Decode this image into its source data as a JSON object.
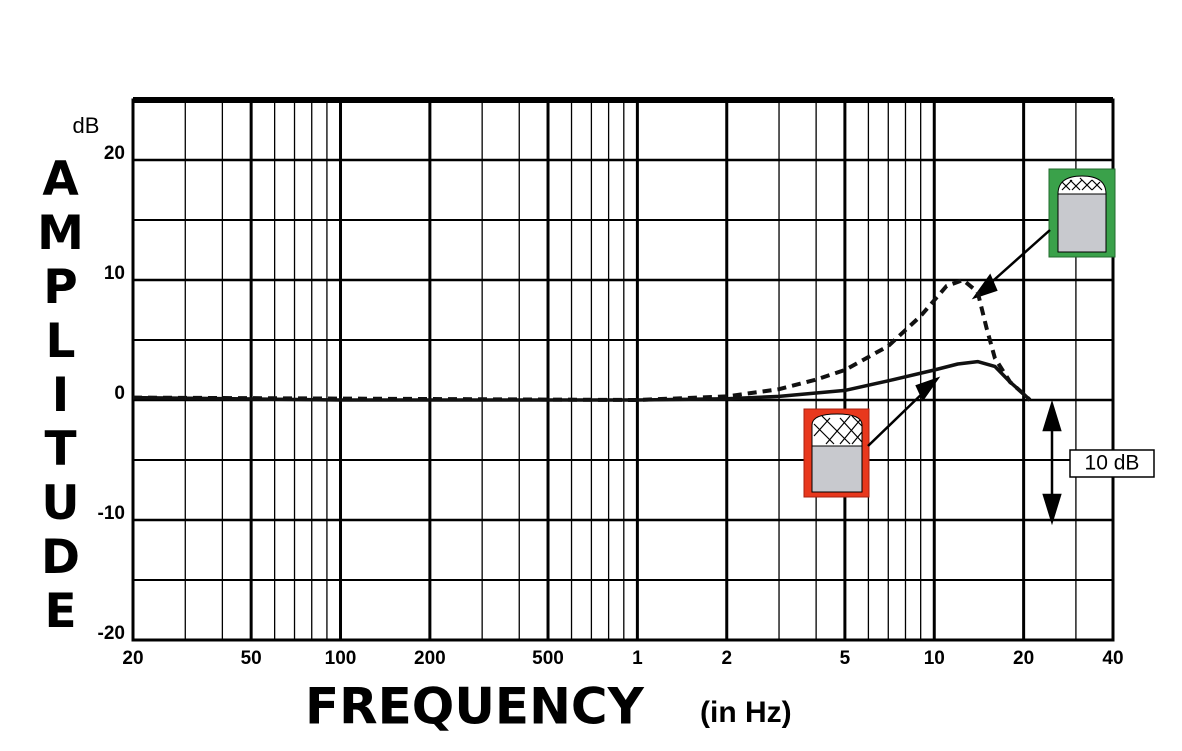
{
  "chart_data": {
    "type": "line",
    "y_unit": "dB",
    "y_axis_title": "AMPLITUDE",
    "x_axis_title": "FREQUENCY",
    "x_axis_subtitle": "(in Hz)",
    "annotation": "10 dB",
    "log_x": true,
    "grid": true,
    "xlim": [
      20,
      40000
    ],
    "ylim": [
      -20,
      25
    ],
    "xticks": [
      20,
      50,
      100,
      200,
      500,
      {
        "value": 1000,
        "label": "1"
      },
      {
        "value": 2000,
        "label": "2"
      },
      {
        "value": 5000,
        "label": "5"
      },
      {
        "value": 10000,
        "label": "10"
      },
      {
        "value": 20000,
        "label": "20"
      },
      {
        "value": 40000,
        "label": "40"
      }
    ],
    "x_minor_ticks": [
      30,
      40,
      60,
      70,
      80,
      90,
      300,
      400,
      600,
      700,
      800,
      900,
      3000,
      4000,
      6000,
      7000,
      8000,
      9000,
      30000
    ],
    "yticks": [
      -20,
      -10,
      0,
      10,
      20
    ],
    "y_minor_ticks": [
      -15,
      -5,
      5,
      15
    ],
    "series": [
      {
        "color": "#111111",
        "dashed": false,
        "x": [
          20,
          100,
          1000,
          2000,
          3000,
          5000,
          7000,
          10000,
          12000,
          14000,
          16000,
          18000,
          20000,
          21000
        ],
        "values": [
          0.2,
          0,
          0,
          0.1,
          0.3,
          0.8,
          1.6,
          2.5,
          3,
          3.2,
          2.8,
          1.5,
          0.5,
          0
        ]
      },
      {
        "color": "#111111",
        "dashed": true,
        "x": [
          20,
          1000,
          2000,
          3000,
          4000,
          5000,
          7000,
          9000,
          11000,
          12500,
          14000,
          15000,
          16000,
          18000,
          20000,
          21000
        ],
        "values": [
          0.2,
          0,
          0.3,
          0.9,
          1.7,
          2.5,
          4.5,
          7,
          9.5,
          10,
          9,
          6,
          3.5,
          1.5,
          0.5,
          0
        ]
      }
    ]
  }
}
